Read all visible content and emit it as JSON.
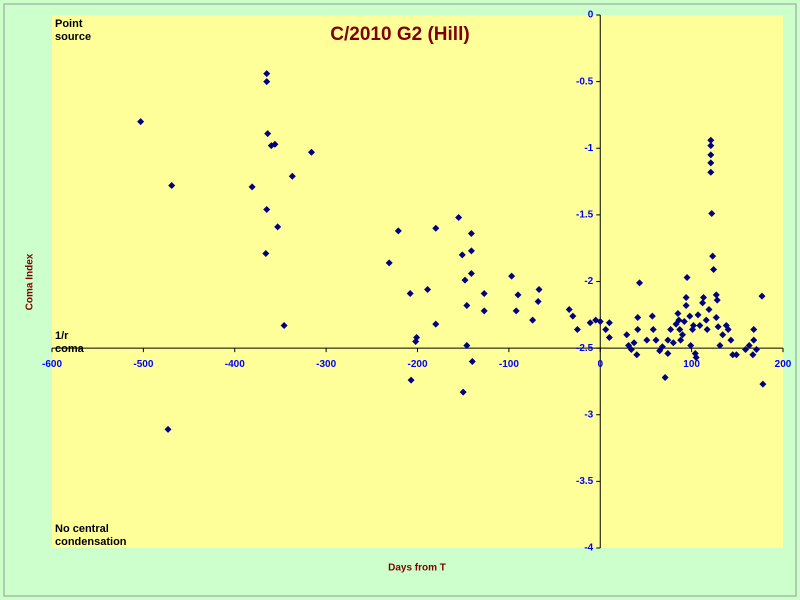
{
  "chart_data": {
    "type": "scatter",
    "title": "C/2010 G2 (Hill)",
    "x_label": "Days from T",
    "y_label": "Coma Index",
    "annotations": [
      "Point source",
      "1/r coma",
      "No central condensation"
    ],
    "color": "#000080",
    "xlim": [
      -600,
      200
    ],
    "xticks": [
      -600,
      -500,
      -400,
      -300,
      -200,
      -100,
      0,
      100,
      200
    ],
    "ylim": [
      -4,
      0
    ],
    "yticks": [
      0,
      -0.5,
      -1,
      -1.5,
      -2,
      -2.5,
      -3,
      -3.5,
      -4
    ],
    "x": [
      -503,
      -469,
      -473,
      -381,
      -365,
      -365,
      -364,
      -360,
      -356,
      -365,
      -353,
      -366,
      -346,
      -337,
      -316,
      -231,
      -221,
      -208,
      -202,
      -201,
      -207,
      -189,
      -180,
      -180,
      -155,
      -151,
      -148,
      -146,
      -146,
      -150,
      -141,
      -141,
      -141,
      -140,
      -127,
      -127,
      -97,
      -92,
      -90,
      -74,
      -67,
      -68,
      -34,
      -30,
      -25,
      -11,
      -5,
      0,
      6,
      10,
      10,
      29,
      31,
      34,
      37,
      41,
      41,
      43,
      40,
      51,
      57,
      58,
      61,
      65,
      68,
      71,
      74,
      74,
      77,
      80,
      83,
      85,
      86,
      87,
      88,
      90,
      92,
      94,
      94,
      95,
      98,
      99,
      101,
      102,
      104,
      105,
      107,
      109,
      112,
      113,
      116,
      117,
      119,
      121,
      121,
      121,
      121,
      121,
      122,
      123,
      124,
      127,
      128,
      127,
      129,
      131,
      134,
      138,
      140,
      143,
      145,
      149,
      159,
      163,
      167,
      168,
      168,
      171,
      177,
      178
    ],
    "values": [
      -0.8,
      -1.28,
      -3.11,
      -1.29,
      -0.44,
      -0.5,
      -0.89,
      -0.98,
      -0.97,
      -1.46,
      -1.59,
      -1.79,
      -2.33,
      -1.21,
      -1.03,
      -1.86,
      -1.62,
      -2.09,
      -2.45,
      -2.42,
      -2.74,
      -2.06,
      -1.6,
      -2.32,
      -1.52,
      -1.8,
      -1.99,
      -2.18,
      -2.48,
      -2.83,
      -1.64,
      -1.77,
      -1.94,
      -2.6,
      -2.09,
      -2.22,
      -1.96,
      -2.22,
      -2.1,
      -2.29,
      -2.06,
      -2.15,
      -2.21,
      -2.26,
      -2.36,
      -2.31,
      -2.29,
      -2.3,
      -2.36,
      -2.42,
      -2.31,
      -2.4,
      -2.48,
      -2.51,
      -2.46,
      -2.27,
      -2.36,
      -2.01,
      -2.55,
      -2.44,
      -2.26,
      -2.36,
      -2.44,
      -2.52,
      -2.49,
      -2.72,
      -2.44,
      -2.54,
      -2.36,
      -2.46,
      -2.32,
      -2.24,
      -2.29,
      -2.36,
      -2.44,
      -2.4,
      -2.3,
      -2.18,
      -2.12,
      -1.97,
      -2.26,
      -2.48,
      -2.36,
      -2.33,
      -2.54,
      -2.57,
      -2.25,
      -2.33,
      -2.16,
      -2.12,
      -2.29,
      -2.36,
      -2.21,
      -0.94,
      -0.98,
      -1.05,
      -1.11,
      -1.18,
      -1.49,
      -1.81,
      -1.91,
      -2.1,
      -2.14,
      -2.27,
      -2.34,
      -2.48,
      -2.4,
      -2.33,
      -2.36,
      -2.44,
      -2.55,
      -2.55,
      -2.51,
      -2.48,
      -2.55,
      -2.36,
      -2.44,
      -2.51,
      -2.11,
      -2.77
    ]
  }
}
